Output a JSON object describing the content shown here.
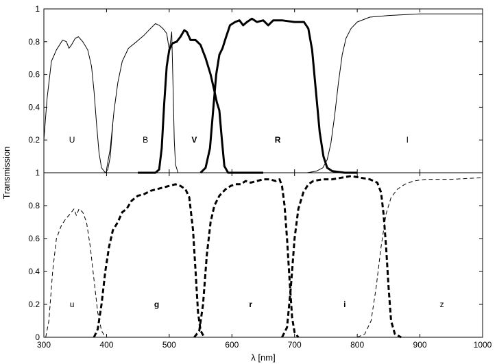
{
  "chart_data": {
    "type": "line",
    "xlabel": "λ [nm]",
    "ylabel": "Transmission",
    "xlim": [
      300,
      1000
    ],
    "x_ticks": [
      300,
      400,
      500,
      600,
      700,
      800,
      900,
      1000
    ],
    "grid": false,
    "panels": [
      {
        "name": "top",
        "ylim": [
          0,
          1
        ],
        "y_ticks": [
          0.2,
          0.4,
          0.6,
          0.8,
          1
        ],
        "y_tick_labels": [
          "0.2",
          "0.4",
          "0.6",
          "0.8",
          "1"
        ],
        "series": [
          {
            "name": "U",
            "label_pos": [
              345,
              0.2
            ],
            "style": "solid-thin",
            "points": [
              [
                300,
                0.2
              ],
              [
                305,
                0.45
              ],
              [
                312,
                0.68
              ],
              [
                320,
                0.75
              ],
              [
                330,
                0.81
              ],
              [
                336,
                0.8
              ],
              [
                340,
                0.76
              ],
              [
                344,
                0.78
              ],
              [
                350,
                0.82
              ],
              [
                355,
                0.83
              ],
              [
                362,
                0.8
              ],
              [
                370,
                0.75
              ],
              [
                376,
                0.65
              ],
              [
                380,
                0.5
              ],
              [
                384,
                0.3
              ],
              [
                388,
                0.12
              ],
              [
                392,
                0.03
              ],
              [
                398,
                0
              ],
              [
                402,
                0.02
              ],
              [
                406,
                0.1
              ],
              [
                410,
                0.3
              ]
            ]
          },
          {
            "name": "B",
            "label_pos": [
              462,
              0.2
            ],
            "style": "solid-thin",
            "points": [
              [
                400,
                0.02
              ],
              [
                406,
                0.15
              ],
              [
                412,
                0.38
              ],
              [
                418,
                0.55
              ],
              [
                425,
                0.68
              ],
              [
                435,
                0.76
              ],
              [
                448,
                0.8
              ],
              [
                460,
                0.84
              ],
              [
                470,
                0.88
              ],
              [
                478,
                0.91
              ],
              [
                484,
                0.9
              ],
              [
                490,
                0.88
              ],
              [
                496,
                0.85
              ],
              [
                500,
                0.75
              ],
              [
                502,
                0.8
              ],
              [
                504,
                0.86
              ],
              [
                506,
                0.55
              ],
              [
                508,
                0.2
              ],
              [
                510,
                0.05
              ],
              [
                514,
                0
              ]
            ]
          },
          {
            "name": "V",
            "label_pos": [
              540,
              0.2
            ],
            "style": "solid-thick",
            "points": [
              [
                450,
                0
              ],
              [
                478,
                0
              ],
              [
                484,
                0.02
              ],
              [
                488,
                0.15
              ],
              [
                492,
                0.42
              ],
              [
                496,
                0.65
              ],
              [
                500,
                0.75
              ],
              [
                505,
                0.79
              ],
              [
                512,
                0.8
              ],
              [
                518,
                0.83
              ],
              [
                524,
                0.87
              ],
              [
                528,
                0.86
              ],
              [
                534,
                0.81
              ],
              [
                542,
                0.81
              ],
              [
                550,
                0.78
              ],
              [
                558,
                0.7
              ],
              [
                566,
                0.6
              ],
              [
                572,
                0.5
              ],
              [
                576,
                0.43
              ],
              [
                580,
                0.38
              ],
              [
                584,
                0.2
              ],
              [
                588,
                0.04
              ],
              [
                594,
                0
              ],
              [
                650,
                0
              ]
            ]
          },
          {
            "name": "R",
            "label_pos": [
              673,
              0.2
            ],
            "style": "solid-thick",
            "points": [
              [
                550,
                0
              ],
              [
                558,
                0.03
              ],
              [
                565,
                0.15
              ],
              [
                570,
                0.38
              ],
              [
                575,
                0.6
              ],
              [
                580,
                0.72
              ],
              [
                585,
                0.76
              ],
              [
                590,
                0.82
              ],
              [
                597,
                0.9
              ],
              [
                605,
                0.92
              ],
              [
                612,
                0.93
              ],
              [
                618,
                0.9
              ],
              [
                624,
                0.92
              ],
              [
                632,
                0.94
              ],
              [
                640,
                0.92
              ],
              [
                650,
                0.93
              ],
              [
                658,
                0.9
              ],
              [
                666,
                0.93
              ],
              [
                680,
                0.93
              ],
              [
                700,
                0.92
              ],
              [
                715,
                0.92
              ],
              [
                722,
                0.88
              ],
              [
                728,
                0.75
              ],
              [
                734,
                0.5
              ],
              [
                740,
                0.25
              ],
              [
                746,
                0.1
              ],
              [
                752,
                0.03
              ],
              [
                760,
                0.01
              ],
              [
                780,
                0
              ],
              [
                800,
                0
              ]
            ]
          },
          {
            "name": "I",
            "label_pos": [
              880,
              0.2
            ],
            "style": "solid-thin",
            "points": [
              [
                720,
                0
              ],
              [
                735,
                0.01
              ],
              [
                745,
                0.03
              ],
              [
                752,
                0.08
              ],
              [
                758,
                0.18
              ],
              [
                764,
                0.35
              ],
              [
                770,
                0.55
              ],
              [
                776,
                0.72
              ],
              [
                782,
                0.82
              ],
              [
                790,
                0.88
              ],
              [
                800,
                0.92
              ],
              [
                820,
                0.95
              ],
              [
                850,
                0.96
              ],
              [
                900,
                0.97
              ],
              [
                1000,
                0.97
              ]
            ]
          }
        ]
      },
      {
        "name": "bottom",
        "ylim": [
          0,
          1
        ],
        "y_ticks": [
          0,
          0.2,
          0.4,
          0.6,
          0.8,
          1
        ],
        "y_tick_labels": [
          "0",
          "0.2",
          "0.4",
          "0.6",
          "0.8",
          "1"
        ],
        "series": [
          {
            "name": "u",
            "label_pos": [
              345,
              0.2
            ],
            "style": "dashed-thin",
            "points": [
              [
                303,
                0
              ],
              [
                308,
                0.1
              ],
              [
                314,
                0.4
              ],
              [
                320,
                0.6
              ],
              [
                328,
                0.68
              ],
              [
                335,
                0.72
              ],
              [
                342,
                0.75
              ],
              [
                348,
                0.78
              ],
              [
                352,
                0.74
              ],
              [
                356,
                0.78
              ],
              [
                362,
                0.76
              ],
              [
                368,
                0.7
              ],
              [
                374,
                0.55
              ],
              [
                380,
                0.35
              ],
              [
                386,
                0.15
              ],
              [
                392,
                0.04
              ],
              [
                398,
                0
              ]
            ]
          },
          {
            "name": "g",
            "label_pos": [
              480,
              0.2
            ],
            "style": "dashed-thick",
            "points": [
              [
                380,
                0
              ],
              [
                386,
                0.05
              ],
              [
                392,
                0.2
              ],
              [
                398,
                0.4
              ],
              [
                404,
                0.55
              ],
              [
                410,
                0.65
              ],
              [
                418,
                0.7
              ],
              [
                425,
                0.76
              ],
              [
                432,
                0.78
              ],
              [
                440,
                0.83
              ],
              [
                450,
                0.86
              ],
              [
                460,
                0.87
              ],
              [
                470,
                0.89
              ],
              [
                480,
                0.9
              ],
              [
                490,
                0.91
              ],
              [
                500,
                0.92
              ],
              [
                510,
                0.93
              ],
              [
                518,
                0.92
              ],
              [
                526,
                0.9
              ],
              [
                532,
                0.85
              ],
              [
                538,
                0.65
              ],
              [
                542,
                0.4
              ],
              [
                546,
                0.15
              ],
              [
                550,
                0.04
              ],
              [
                556,
                0
              ]
            ]
          },
          {
            "name": "r",
            "label_pos": [
              630,
              0.2
            ],
            "style": "dashed-thick",
            "points": [
              [
                540,
                0
              ],
              [
                548,
                0.04
              ],
              [
                554,
                0.2
              ],
              [
                560,
                0.5
              ],
              [
                566,
                0.7
              ],
              [
                572,
                0.8
              ],
              [
                580,
                0.86
              ],
              [
                590,
                0.9
              ],
              [
                598,
                0.92
              ],
              [
                606,
                0.93
              ],
              [
                614,
                0.93
              ],
              [
                622,
                0.95
              ],
              [
                630,
                0.94
              ],
              [
                640,
                0.95
              ],
              [
                650,
                0.96
              ],
              [
                660,
                0.96
              ],
              [
                670,
                0.95
              ],
              [
                676,
                0.96
              ],
              [
                680,
                0.92
              ],
              [
                684,
                0.8
              ],
              [
                688,
                0.6
              ],
              [
                692,
                0.35
              ],
              [
                696,
                0.12
              ],
              [
                700,
                0.03
              ],
              [
                706,
                0
              ]
            ]
          },
          {
            "name": "i",
            "label_pos": [
              780,
              0.2
            ],
            "style": "dashed-thick",
            "points": [
              [
                680,
                0
              ],
              [
                688,
                0.06
              ],
              [
                694,
                0.3
              ],
              [
                700,
                0.6
              ],
              [
                706,
                0.78
              ],
              [
                714,
                0.88
              ],
              [
                722,
                0.93
              ],
              [
                730,
                0.95
              ],
              [
                745,
                0.96
              ],
              [
                760,
                0.96
              ],
              [
                775,
                0.97
              ],
              [
                790,
                0.98
              ],
              [
                805,
                0.97
              ],
              [
                820,
                0.96
              ],
              [
                832,
                0.94
              ],
              [
                838,
                0.88
              ],
              [
                842,
                0.75
              ],
              [
                846,
                0.55
              ],
              [
                850,
                0.3
              ],
              [
                854,
                0.1
              ],
              [
                860,
                0.02
              ],
              [
                870,
                0
              ]
            ]
          },
          {
            "name": "z",
            "label_pos": [
              935,
              0.2
            ],
            "style": "dashed-thin",
            "points": [
              [
                800,
                0
              ],
              [
                812,
                0.02
              ],
              [
                822,
                0.1
              ],
              [
                830,
                0.3
              ],
              [
                838,
                0.55
              ],
              [
                846,
                0.75
              ],
              [
                854,
                0.85
              ],
              [
                864,
                0.9
              ],
              [
                876,
                0.93
              ],
              [
                890,
                0.95
              ],
              [
                910,
                0.96
              ],
              [
                950,
                0.96
              ],
              [
                1000,
                0.97
              ]
            ]
          }
        ]
      }
    ]
  }
}
